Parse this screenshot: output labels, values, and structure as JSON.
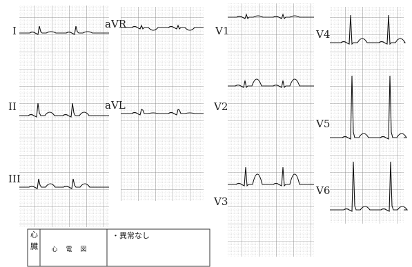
{
  "leads": [
    "I",
    "II",
    "III",
    "aVR",
    "aVL",
    "V1",
    "V2",
    "V3",
    "V4",
    "V5",
    "V6"
  ],
  "report": {
    "section": "心臓",
    "test": "心電図",
    "finding": "・異常なし"
  }
}
